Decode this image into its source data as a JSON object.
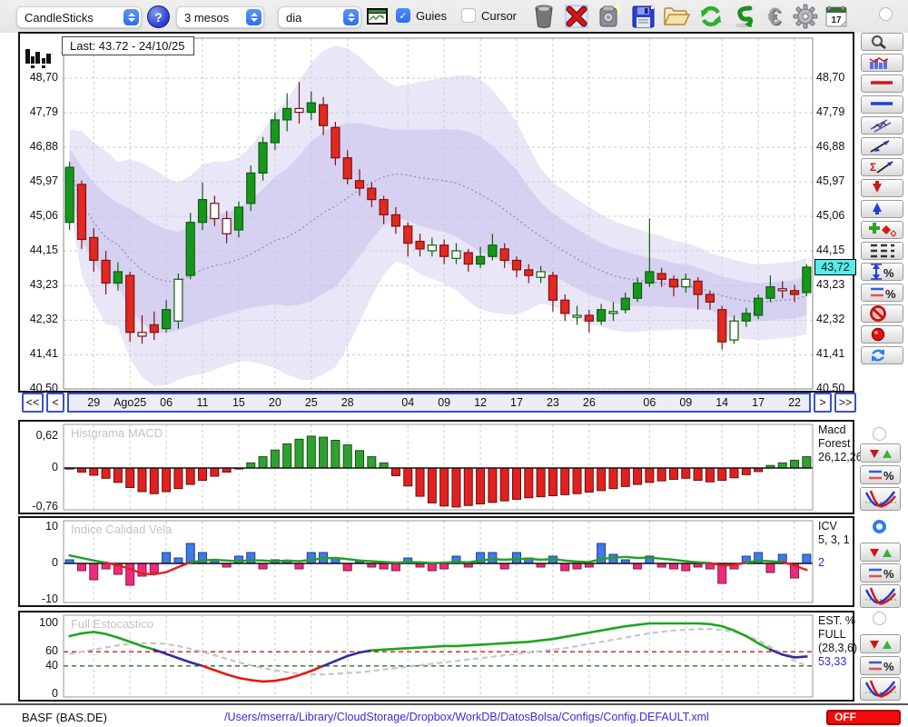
{
  "toolbar": {
    "chart_type": "CandleSticks",
    "help_label": "?",
    "period": "3 mesos",
    "timeframe": "dia",
    "guies_label": "Guies",
    "guies_check": "✓",
    "cursor_label": "Cursor",
    "calendar_day": "17",
    "euro_glyph": "€"
  },
  "chart": {
    "last_label": "Last: 43.72 - 24/10/25",
    "current_price": "43,72",
    "current_price_value": 43.72,
    "price_labels": [
      "48,70",
      "47,79",
      "46,88",
      "45,97",
      "45,06",
      "44,15",
      "43,23",
      "42,32",
      "41,41",
      "40,50"
    ],
    "price_values": [
      48.7,
      47.79,
      46.88,
      45.97,
      45.06,
      44.15,
      43.23,
      42.32,
      41.41,
      40.5
    ],
    "candles": [
      [
        44.9,
        46.5,
        44.7,
        46.35
      ],
      [
        45.9,
        46.0,
        44.2,
        44.45
      ],
      [
        44.5,
        44.75,
        43.6,
        43.9
      ],
      [
        43.9,
        44.15,
        43.0,
        43.3
      ],
      [
        43.3,
        43.85,
        43.1,
        43.6
      ],
      [
        43.5,
        43.6,
        41.75,
        42.0
      ],
      [
        42.0,
        42.45,
        41.7,
        41.9
      ],
      [
        42.2,
        42.55,
        41.8,
        42.0
      ],
      [
        42.1,
        42.85,
        42.0,
        42.6
      ],
      [
        42.3,
        43.55,
        42.1,
        43.4
      ],
      [
        43.5,
        45.15,
        43.4,
        44.9
      ],
      [
        44.9,
        45.95,
        44.7,
        45.5
      ],
      [
        45.4,
        45.6,
        44.8,
        45.0
      ],
      [
        45.0,
        45.2,
        44.35,
        44.6
      ],
      [
        44.7,
        45.45,
        44.5,
        45.3
      ],
      [
        45.4,
        46.4,
        45.2,
        46.2
      ],
      [
        46.2,
        47.15,
        46.0,
        47.0
      ],
      [
        47.0,
        47.8,
        46.8,
        47.6
      ],
      [
        47.6,
        48.3,
        47.3,
        47.9
      ],
      [
        47.9,
        48.6,
        47.5,
        47.8
      ],
      [
        47.8,
        48.35,
        47.6,
        48.05
      ],
      [
        48.0,
        48.2,
        47.2,
        47.45
      ],
      [
        47.4,
        47.55,
        46.4,
        46.6
      ],
      [
        46.6,
        46.8,
        45.9,
        46.05
      ],
      [
        46.0,
        46.3,
        45.6,
        45.8
      ],
      [
        45.8,
        45.95,
        45.3,
        45.5
      ],
      [
        45.5,
        45.6,
        44.85,
        45.1
      ],
      [
        45.1,
        45.3,
        44.6,
        44.8
      ],
      [
        44.8,
        44.9,
        44.0,
        44.35
      ],
      [
        44.4,
        44.6,
        44.0,
        44.2
      ],
      [
        44.15,
        44.5,
        44.0,
        44.3
      ],
      [
        44.3,
        44.45,
        43.8,
        44.0
      ],
      [
        43.95,
        44.35,
        43.8,
        44.15
      ],
      [
        44.1,
        44.2,
        43.6,
        43.8
      ],
      [
        43.8,
        44.25,
        43.7,
        44.0
      ],
      [
        44.0,
        44.6,
        43.9,
        44.3
      ],
      [
        44.2,
        44.35,
        43.7,
        43.9
      ],
      [
        43.9,
        44.0,
        43.45,
        43.65
      ],
      [
        43.65,
        43.8,
        43.3,
        43.5
      ],
      [
        43.45,
        43.75,
        43.3,
        43.6
      ],
      [
        43.5,
        43.6,
        42.55,
        42.85
      ],
      [
        42.85,
        43.0,
        42.3,
        42.5
      ],
      [
        42.4,
        42.7,
        42.2,
        42.45
      ],
      [
        42.45,
        42.6,
        42.0,
        42.3
      ],
      [
        42.3,
        42.75,
        42.2,
        42.6
      ],
      [
        42.5,
        42.8,
        42.3,
        42.55
      ],
      [
        42.6,
        43.05,
        42.5,
        42.9
      ],
      [
        42.9,
        43.45,
        42.8,
        43.3
      ],
      [
        43.3,
        45.0,
        43.2,
        43.6
      ],
      [
        43.55,
        43.7,
        43.2,
        43.4
      ],
      [
        43.4,
        43.5,
        42.95,
        43.2
      ],
      [
        43.2,
        43.55,
        43.05,
        43.4
      ],
      [
        43.35,
        43.45,
        42.6,
        43.0
      ],
      [
        43.0,
        43.1,
        42.6,
        42.8
      ],
      [
        42.6,
        42.7,
        41.55,
        41.75
      ],
      [
        41.8,
        42.45,
        41.7,
        42.3
      ],
      [
        42.3,
        42.65,
        42.15,
        42.5
      ],
      [
        42.45,
        43.0,
        42.35,
        42.9
      ],
      [
        42.9,
        43.5,
        42.8,
        43.2
      ],
      [
        43.15,
        43.35,
        42.9,
        43.1
      ],
      [
        43.1,
        43.25,
        42.8,
        43.0
      ],
      [
        43.05,
        43.8,
        42.95,
        43.72
      ]
    ],
    "hollow": [
      6,
      9,
      12,
      13,
      19,
      30,
      32,
      39,
      42,
      45,
      51,
      55,
      59
    ]
  },
  "xaxis": {
    "nav": [
      "<<",
      "<",
      ">",
      ">>"
    ],
    "ticks": [
      {
        "label": "29",
        "i": 2
      },
      {
        "label": "Ago25",
        "i": 5
      },
      {
        "label": "06",
        "i": 8
      },
      {
        "label": "11",
        "i": 11
      },
      {
        "label": "15",
        "i": 14
      },
      {
        "label": "20",
        "i": 17
      },
      {
        "label": "25",
        "i": 20
      },
      {
        "label": "28",
        "i": 23
      },
      {
        "label": "04",
        "i": 28
      },
      {
        "label": "09",
        "i": 31
      },
      {
        "label": "12",
        "i": 34
      },
      {
        "label": "17",
        "i": 37
      },
      {
        "label": "23",
        "i": 40
      },
      {
        "label": "26",
        "i": 43
      },
      {
        "label": "06",
        "i": 48
      },
      {
        "label": "09",
        "i": 51
      },
      {
        "label": "14",
        "i": 54
      },
      {
        "label": "17",
        "i": 57
      },
      {
        "label": "22",
        "i": 60
      }
    ]
  },
  "panels": {
    "macd": {
      "title": "Histgrama MACD",
      "y_labels": [
        "0,62",
        "0",
        "-0,76"
      ],
      "right_label": [
        "Macd",
        "Forest",
        "26,12,26"
      ],
      "values": [
        -0.02,
        -0.08,
        -0.14,
        -0.2,
        -0.28,
        -0.38,
        -0.46,
        -0.5,
        -0.46,
        -0.4,
        -0.32,
        -0.24,
        -0.16,
        -0.08,
        -0.02,
        0.1,
        0.22,
        0.35,
        0.47,
        0.56,
        0.62,
        0.6,
        0.54,
        0.45,
        0.34,
        0.22,
        0.1,
        -0.15,
        -0.35,
        -0.55,
        -0.68,
        -0.74,
        -0.76,
        -0.73,
        -0.7,
        -0.67,
        -0.64,
        -0.61,
        -0.58,
        -0.56,
        -0.54,
        -0.52,
        -0.5,
        -0.47,
        -0.44,
        -0.4,
        -0.36,
        -0.32,
        -0.28,
        -0.25,
        -0.22,
        -0.2,
        -0.24,
        -0.27,
        -0.24,
        -0.19,
        -0.13,
        -0.07,
        0.05,
        0.1,
        0.15,
        0.22
      ]
    },
    "icv": {
      "title": "Indice Calidad Vela",
      "y_labels": [
        "10",
        "0",
        "-10"
      ],
      "right_label": [
        "ICV",
        "5, 3, 1"
      ],
      "value": "2",
      "bars": [
        1,
        -2,
        -4.5,
        -1.5,
        -3,
        -6,
        -3.5,
        -2.5,
        3,
        1.5,
        5.5,
        3,
        1,
        -1,
        2,
        3,
        -1.5,
        1,
        0.8,
        -1.5,
        3,
        3,
        1.5,
        -2,
        0.5,
        -1,
        -1.5,
        -2,
        1.5,
        -1,
        -2,
        -1.5,
        2,
        -1,
        3,
        3,
        -1.5,
        3,
        1.5,
        -1,
        2,
        -2,
        -1.5,
        -1,
        5.5,
        2.5,
        1,
        -1.5,
        2,
        -1,
        -1.5,
        -2,
        -1,
        -1.5,
        -5.5,
        -1.5,
        2,
        3,
        -2.5,
        2.5,
        -4,
        2.5
      ],
      "line": [
        2.2,
        1.5,
        0.8,
        0.2,
        -0.5,
        -1.5,
        -2.8,
        -3.0,
        -2.4,
        -1.0,
        0.3,
        0.8,
        1.0,
        0.8,
        0.6,
        0.9,
        0.8,
        0.6,
        0.8,
        0.6,
        1.0,
        1.4,
        1.5,
        1.2,
        0.8,
        0.6,
        0.4,
        0.2,
        0.4,
        0.3,
        0.1,
        0.2,
        0.4,
        0.3,
        0.8,
        1.2,
        1.0,
        1.2,
        1.3,
        1.0,
        1.2,
        0.8,
        0.5,
        0.4,
        1.2,
        1.6,
        1.8,
        1.5,
        1.6,
        1.3,
        1.0,
        0.6,
        0.3,
        0.1,
        -0.6,
        -0.4,
        0.2,
        0.8,
        0.6,
        0.4,
        -0.6,
        -1.8
      ]
    },
    "stoch": {
      "title": "Full Estocastico",
      "y_labels": [
        "100",
        "60",
        "40",
        "0"
      ],
      "y_values": [
        100,
        60,
        40,
        0
      ],
      "right_label": [
        "EST. %",
        "FULL",
        "(28,3,6)"
      ],
      "value": "53,33",
      "guide_upper": 60,
      "guide_lower": 40,
      "fast": [
        82,
        86,
        88,
        85,
        80,
        74,
        68,
        63,
        57,
        51,
        45,
        40,
        34,
        28,
        23,
        20,
        18,
        19,
        22,
        27,
        33,
        40,
        47,
        54,
        59,
        62,
        63,
        64,
        65,
        66,
        67,
        68,
        68,
        69,
        70,
        71,
        72,
        73,
        74,
        76,
        78,
        81,
        84,
        87,
        90,
        93,
        96,
        98,
        100,
        100,
        100,
        100,
        100,
        99,
        96,
        90,
        82,
        72,
        63,
        56,
        52,
        53.3
      ],
      "slow": [
        57,
        60,
        63,
        66,
        69,
        71,
        72,
        72,
        71,
        68,
        64,
        60,
        55,
        50,
        45,
        41,
        37,
        34,
        31,
        29,
        28,
        28,
        29,
        30,
        31,
        33,
        35,
        37,
        39,
        41,
        43,
        45,
        47,
        49,
        51,
        53,
        55,
        57,
        59,
        61,
        63,
        65,
        68,
        71,
        74,
        77,
        80,
        83,
        86,
        88,
        90,
        91,
        92,
        92,
        91,
        88,
        83,
        76,
        67,
        57,
        47,
        40
      ]
    }
  },
  "statusbar": {
    "symbol": "BASF (BAS.DE)",
    "config_path": "/Users/mserra/Library/CloudStorage/Dropbox/WorkDB/DatosBolsa/Configs/Config.DEFAULT.xml",
    "off_label": "OFF"
  },
  "palette": {
    "candle_up": "#18961d",
    "candle_down": "#e02a20",
    "band_fill": "#cfc8ee",
    "price_tag_bg": "#55ecec",
    "macd_up": "#2fa12f",
    "macd_down": "#e12020",
    "icv_pos": "#4079e8",
    "icv_neg": "#ef2a7c",
    "stoch_high": "#1fa51f",
    "stoch_low": "#e51a1a",
    "stoch_mid": "#372a9e",
    "accent_blue": "#2e7bf6",
    "off_red": "#f20d0d"
  }
}
